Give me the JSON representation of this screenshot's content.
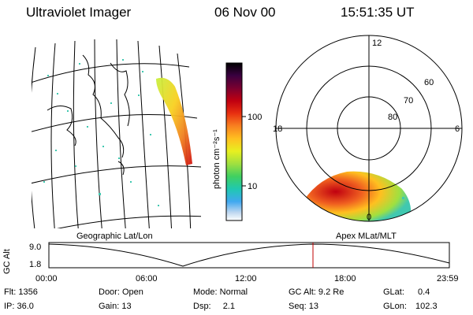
{
  "header": {
    "instrument": "Ultraviolet Imager",
    "date": "06 Nov 00",
    "time": "15:51:35 UT"
  },
  "left_panel": {
    "projection_label": "Geographic Lat/Lon"
  },
  "colorbar": {
    "unit_label": "photon cm⁻²s⁻¹",
    "ticks": [
      "100",
      "10"
    ],
    "colors": [
      "#000000",
      "#3a0040",
      "#7a0030",
      "#b0001a",
      "#e02010",
      "#f06020",
      "#f8a020",
      "#ffd020",
      "#e8f020",
      "#a0e040",
      "#40d060",
      "#20c8b0",
      "#40a8f0",
      "#a0c8f0",
      "#e0e8f8",
      "#ffffff"
    ]
  },
  "polar_panel": {
    "title": "Apex MLat/MLT",
    "mlt_labels": {
      "top": "12",
      "left": "18",
      "right": "6",
      "bottom": "0"
    },
    "lat_labels": [
      "60",
      "70",
      "80"
    ]
  },
  "altitude_plot": {
    "y_axis_label": "GC Alt",
    "y_ticks": [
      "9.0",
      "1.8"
    ],
    "x_ticks": [
      "00:00",
      "06:00",
      "12:00",
      "18:00",
      "23:59"
    ],
    "current_time_marker_color": "#c00000"
  },
  "status": {
    "flt_label": "Flt:",
    "flt_value": "1356",
    "ip_label": "IP:",
    "ip_value": "36.0",
    "door_label": "Door:",
    "door_value": "Open",
    "gain_label": "Gain:",
    "gain_value": "13",
    "mode_label": "Mode:",
    "mode_value": "Normal",
    "dsp_label": "Dsp:",
    "dsp_value": "2.1",
    "gcalt_label": "GC Alt:",
    "gcalt_value": "9.2 Re",
    "seq_label": "Seq:",
    "seq_value": "13",
    "glat_label": "GLat:",
    "glat_value": "0.4",
    "glon_label": "GLon:",
    "glon_value": "102.3"
  }
}
